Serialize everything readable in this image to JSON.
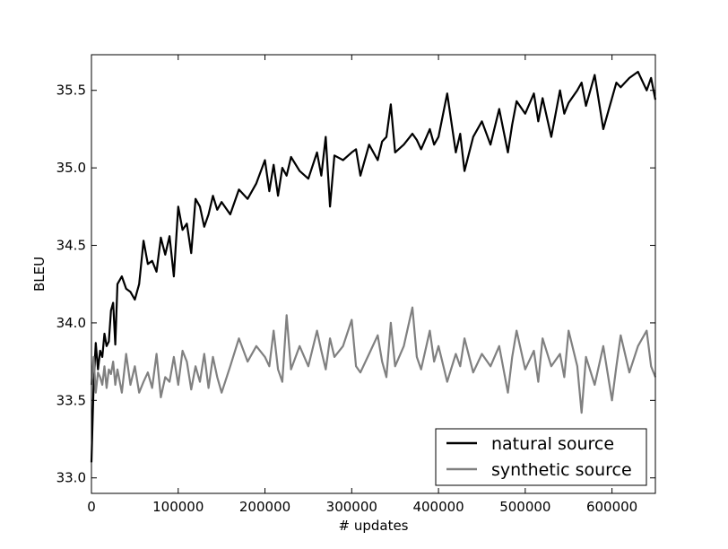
{
  "chart_data": {
    "type": "line",
    "title": "",
    "xlabel": "# updates",
    "ylabel": "BLEU",
    "xlim": [
      0,
      650000
    ],
    "ylim": [
      32.9,
      35.73
    ],
    "xticks": [
      0,
      100000,
      200000,
      300000,
      400000,
      500000,
      600000
    ],
    "xtick_labels": [
      "0",
      "100000",
      "200000",
      "300000",
      "400000",
      "500000",
      "600000"
    ],
    "yticks": [
      33.0,
      33.5,
      34.0,
      34.5,
      35.0,
      35.5
    ],
    "ytick_labels": [
      "33.0",
      "33.5",
      "34.0",
      "34.5",
      "35.0",
      "35.5"
    ],
    "grid": false,
    "legend_position": "lower-right",
    "series": [
      {
        "name": "natural source",
        "color": "#000000",
        "x": [
          0,
          2500,
          5000,
          7500,
          10000,
          12500,
          15000,
          17500,
          20000,
          22500,
          25000,
          27500,
          30000,
          35000,
          40000,
          45000,
          50000,
          55000,
          60000,
          65000,
          70000,
          75000,
          80000,
          85000,
          90000,
          95000,
          100000,
          105000,
          110000,
          115000,
          120000,
          125000,
          130000,
          135000,
          140000,
          145000,
          150000,
          160000,
          170000,
          180000,
          190000,
          200000,
          205000,
          210000,
          215000,
          220000,
          225000,
          230000,
          240000,
          250000,
          260000,
          265000,
          270000,
          275000,
          280000,
          290000,
          300000,
          305000,
          310000,
          320000,
          330000,
          335000,
          340000,
          345000,
          350000,
          360000,
          370000,
          375000,
          380000,
          390000,
          395000,
          400000,
          410000,
          420000,
          425000,
          430000,
          440000,
          450000,
          460000,
          470000,
          480000,
          485000,
          490000,
          500000,
          510000,
          515000,
          520000,
          530000,
          540000,
          545000,
          550000,
          560000,
          565000,
          570000,
          580000,
          590000,
          600000,
          605000,
          610000,
          620000,
          630000,
          640000,
          645000,
          650000
        ],
        "values": [
          33.1,
          33.6,
          33.87,
          33.7,
          33.82,
          33.78,
          33.93,
          33.85,
          33.88,
          34.08,
          34.13,
          33.86,
          34.25,
          34.3,
          34.22,
          34.2,
          34.15,
          34.25,
          34.53,
          34.38,
          34.4,
          34.33,
          34.55,
          34.44,
          34.56,
          34.3,
          34.75,
          34.6,
          34.64,
          34.45,
          34.8,
          34.75,
          34.62,
          34.7,
          34.82,
          34.73,
          34.78,
          34.7,
          34.86,
          34.8,
          34.9,
          35.05,
          34.85,
          35.02,
          34.82,
          35.0,
          34.95,
          35.07,
          34.98,
          34.93,
          35.1,
          34.95,
          35.2,
          34.75,
          35.08,
          35.05,
          35.1,
          35.12,
          34.95,
          35.15,
          35.05,
          35.17,
          35.2,
          35.41,
          35.1,
          35.15,
          35.22,
          35.18,
          35.12,
          35.25,
          35.15,
          35.2,
          35.48,
          35.1,
          35.22,
          34.98,
          35.2,
          35.3,
          35.15,
          35.38,
          35.1,
          35.28,
          35.43,
          35.35,
          35.48,
          35.3,
          35.45,
          35.2,
          35.5,
          35.35,
          35.42,
          35.5,
          35.55,
          35.4,
          35.6,
          35.25,
          35.45,
          35.55,
          35.52,
          35.58,
          35.62,
          35.5,
          35.58,
          35.44
        ]
      },
      {
        "name": "synthetic source",
        "color": "#808080",
        "x": [
          0,
          2500,
          5000,
          7500,
          10000,
          12500,
          15000,
          17500,
          20000,
          22500,
          25000,
          27500,
          30000,
          35000,
          40000,
          45000,
          50000,
          55000,
          60000,
          65000,
          70000,
          75000,
          80000,
          85000,
          90000,
          95000,
          100000,
          105000,
          110000,
          115000,
          120000,
          125000,
          130000,
          135000,
          140000,
          145000,
          150000,
          160000,
          170000,
          180000,
          190000,
          200000,
          205000,
          210000,
          215000,
          220000,
          225000,
          230000,
          240000,
          250000,
          260000,
          265000,
          270000,
          275000,
          280000,
          290000,
          300000,
          305000,
          310000,
          320000,
          330000,
          335000,
          340000,
          345000,
          350000,
          360000,
          370000,
          375000,
          380000,
          390000,
          395000,
          400000,
          410000,
          420000,
          425000,
          430000,
          440000,
          450000,
          460000,
          470000,
          480000,
          485000,
          490000,
          500000,
          510000,
          515000,
          520000,
          530000,
          540000,
          545000,
          550000,
          560000,
          565000,
          570000,
          580000,
          590000,
          600000,
          605000,
          610000,
          620000,
          630000,
          640000,
          645000,
          650000
        ],
        "values": [
          33.6,
          33.78,
          33.55,
          33.68,
          33.65,
          33.6,
          33.72,
          33.58,
          33.7,
          33.67,
          33.75,
          33.6,
          33.7,
          33.55,
          33.8,
          33.6,
          33.72,
          33.55,
          33.62,
          33.68,
          33.58,
          33.8,
          33.52,
          33.65,
          33.62,
          33.78,
          33.6,
          33.82,
          33.75,
          33.57,
          33.72,
          33.62,
          33.8,
          33.58,
          33.78,
          33.65,
          33.55,
          33.72,
          33.9,
          33.75,
          33.85,
          33.78,
          33.72,
          33.95,
          33.7,
          33.62,
          34.05,
          33.7,
          33.85,
          33.72,
          33.95,
          33.82,
          33.7,
          33.9,
          33.78,
          33.85,
          34.02,
          33.72,
          33.68,
          33.8,
          33.92,
          33.75,
          33.65,
          34.0,
          33.72,
          33.85,
          34.1,
          33.78,
          33.7,
          33.95,
          33.75,
          33.85,
          33.62,
          33.8,
          33.72,
          33.9,
          33.68,
          33.8,
          33.72,
          33.85,
          33.55,
          33.78,
          33.95,
          33.7,
          33.82,
          33.62,
          33.9,
          33.72,
          33.8,
          33.65,
          33.95,
          33.72,
          33.42,
          33.78,
          33.6,
          33.85,
          33.5,
          33.72,
          33.92,
          33.68,
          33.85,
          33.95,
          33.72,
          33.65
        ]
      }
    ]
  }
}
